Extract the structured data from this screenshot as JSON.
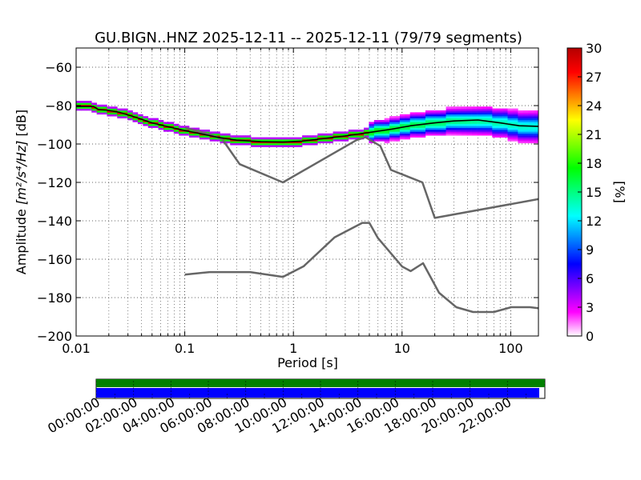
{
  "chart_data": {
    "type": "ppsd",
    "title": "GU.BIGN..HNZ   2025-12-11 -- 2025-12-11  (79/79 segments)",
    "xlabel": "Period [s]",
    "ylabel_prefix": "Amplitude ",
    "ylabel_unit": "[m²/s⁴/Hz]",
    "ylabel_suffix": " [dB]",
    "xscale": "log",
    "xlim": [
      0.01,
      180
    ],
    "ylim": [
      -200,
      -50
    ],
    "xticks": [
      {
        "value": 0.01,
        "label": "0.01"
      },
      {
        "value": 0.1,
        "label": "0.1"
      },
      {
        "value": 1,
        "label": "1"
      },
      {
        "value": 10,
        "label": "10"
      },
      {
        "value": 100,
        "label": "100"
      }
    ],
    "yticks": [
      {
        "value": -60,
        "label": "−60"
      },
      {
        "value": -80,
        "label": "−80"
      },
      {
        "value": -100,
        "label": "−100"
      },
      {
        "value": -120,
        "label": "−120"
      },
      {
        "value": -140,
        "label": "−140"
      },
      {
        "value": -160,
        "label": "−160"
      },
      {
        "value": -180,
        "label": "−180"
      },
      {
        "value": -200,
        "label": "−200"
      }
    ],
    "grid": true,
    "series": [
      {
        "name": "NHNM",
        "color": "#666666",
        "points": [
          [
            0.1,
            -91.5
          ],
          [
            0.17,
            -95
          ],
          [
            0.22,
            -97.3
          ],
          [
            0.32,
            -110.5
          ],
          [
            0.8,
            -120
          ],
          [
            3.8,
            -98
          ],
          [
            4.6,
            -96.5
          ],
          [
            6.3,
            -101
          ],
          [
            7.9,
            -113.5
          ],
          [
            15.4,
            -120
          ],
          [
            20,
            -138.5
          ],
          [
            180,
            -128.7
          ]
        ]
      },
      {
        "name": "NLNM",
        "color": "#666666",
        "points": [
          [
            0.1,
            -168
          ],
          [
            0.17,
            -166.7
          ],
          [
            0.4,
            -166.7
          ],
          [
            0.8,
            -169.2
          ],
          [
            1.24,
            -163.7
          ],
          [
            2.4,
            -148.6
          ],
          [
            4.3,
            -141.1
          ],
          [
            5.0,
            -141.1
          ],
          [
            6.0,
            -149
          ],
          [
            10.0,
            -163.8
          ],
          [
            12.0,
            -166.2
          ],
          [
            15.6,
            -162.1
          ],
          [
            21.9,
            -177.5
          ],
          [
            31.6,
            -185
          ],
          [
            45,
            -187.5
          ],
          [
            70,
            -187.5
          ],
          [
            101,
            -185
          ],
          [
            150,
            -185
          ],
          [
            180,
            -185.5
          ]
        ]
      },
      {
        "name": "mode",
        "color": "#000000",
        "points": [
          [
            0.01,
            -80.5
          ],
          [
            0.0145,
            -80.5
          ],
          [
            0.016,
            -82
          ],
          [
            0.02,
            -82.5
          ],
          [
            0.025,
            -83.5
          ],
          [
            0.035,
            -86
          ],
          [
            0.05,
            -89
          ],
          [
            0.07,
            -91
          ],
          [
            0.1,
            -93
          ],
          [
            0.15,
            -95
          ],
          [
            0.2,
            -96.5
          ],
          [
            0.3,
            -98
          ],
          [
            0.5,
            -98.8
          ],
          [
            0.8,
            -99
          ],
          [
            1.2,
            -98.5
          ],
          [
            2,
            -97
          ],
          [
            3,
            -95.8
          ],
          [
            5,
            -94
          ],
          [
            8,
            -92.3
          ],
          [
            12,
            -90.5
          ],
          [
            20,
            -89
          ],
          [
            30,
            -88
          ],
          [
            50,
            -87.5
          ],
          [
            80,
            -89
          ],
          [
            120,
            -90.5
          ],
          [
            180,
            -90.8
          ]
        ]
      }
    ],
    "colorbar": {
      "label": "[%]",
      "min": 0,
      "max": 30,
      "ticks": [
        {
          "value": 0,
          "label": "0"
        },
        {
          "value": 3,
          "label": "3"
        },
        {
          "value": 6,
          "label": "6"
        },
        {
          "value": 9,
          "label": "9"
        },
        {
          "value": 12,
          "label": "12"
        },
        {
          "value": 15,
          "label": "15"
        },
        {
          "value": 18,
          "label": "18"
        },
        {
          "value": 21,
          "label": "21"
        },
        {
          "value": 24,
          "label": "24"
        },
        {
          "value": 27,
          "label": "27"
        },
        {
          "value": 30,
          "label": "30"
        }
      ],
      "colors": [
        "#ffffff",
        "#ff00ff",
        "#7f00ff",
        "#0000ff",
        "#0080ff",
        "#00ffff",
        "#00ff80",
        "#00ff00",
        "#80ff00",
        "#ffff00",
        "#ff8000",
        "#ff0000",
        "#b40000"
      ]
    },
    "coverage": {
      "start_hours": 0,
      "end_hours": 24,
      "data_bar": {
        "color": "#008000",
        "from_hours": 0,
        "to_hours": 24
      },
      "used_bar": {
        "color": "#0000ff",
        "from_hours": 0,
        "to_hours": 23.7
      },
      "tick_labels": [
        "00:00:00",
        "02:00:00",
        "04:00:00",
        "06:00:00",
        "08:00:00",
        "10:00:00",
        "12:00:00",
        "14:00:00",
        "16:00:00",
        "18:00:00",
        "20:00:00",
        "22:00:00"
      ]
    }
  }
}
